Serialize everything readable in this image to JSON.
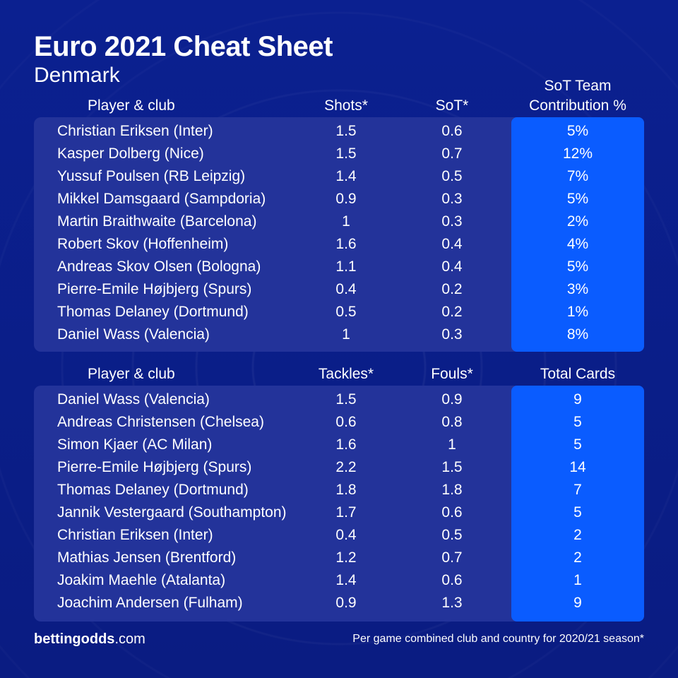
{
  "title": "Euro 2021 Cheat Sheet",
  "subtitle": "Denmark",
  "colors": {
    "background": "#0a1f86",
    "panel": "#23339a",
    "highlight": "#0a5cff",
    "text": "#ffffff"
  },
  "table1": {
    "headers": {
      "player": "Player & club",
      "col1": "Shots*",
      "col2": "SoT*",
      "col3_line1": "SoT Team",
      "col3_line2": "Contribution %"
    },
    "rows": [
      {
        "player": "Christian Eriksen (Inter)",
        "shots": "1.5",
        "sot": "0.6",
        "contribution": "5%"
      },
      {
        "player": "Kasper Dolberg (Nice)",
        "shots": "1.5",
        "sot": "0.7",
        "contribution": "12%"
      },
      {
        "player": "Yussuf Poulsen (RB Leipzig)",
        "shots": "1.4",
        "sot": "0.5",
        "contribution": "7%"
      },
      {
        "player": "Mikkel Damsgaard (Sampdoria)",
        "shots": "0.9",
        "sot": "0.3",
        "contribution": "5%"
      },
      {
        "player": "Martin Braithwaite (Barcelona)",
        "shots": "1",
        "sot": "0.3",
        "contribution": "2%"
      },
      {
        "player": "Robert Skov (Hoffenheim)",
        "shots": "1.6",
        "sot": "0.4",
        "contribution": "4%"
      },
      {
        "player": "Andreas Skov Olsen (Bologna)",
        "shots": "1.1",
        "sot": "0.4",
        "contribution": "5%"
      },
      {
        "player": "Pierre-Emile Højbjerg (Spurs)",
        "shots": "0.4",
        "sot": "0.2",
        "contribution": "3%"
      },
      {
        "player": "Thomas Delaney (Dortmund)",
        "shots": "0.5",
        "sot": "0.2",
        "contribution": "1%"
      },
      {
        "player": "Daniel Wass (Valencia)",
        "shots": "1",
        "sot": "0.3",
        "contribution": "8%"
      }
    ]
  },
  "table2": {
    "headers": {
      "player": "Player & club",
      "col1": "Tackles*",
      "col2": "Fouls*",
      "col3": "Total Cards"
    },
    "rows": [
      {
        "player": "Daniel Wass (Valencia)",
        "tackles": "1.5",
        "fouls": "0.9",
        "cards": "9"
      },
      {
        "player": "Andreas Christensen (Chelsea)",
        "tackles": "0.6",
        "fouls": "0.8",
        "cards": "5"
      },
      {
        "player": "Simon Kjaer (AC Milan)",
        "tackles": "1.6",
        "fouls": "1",
        "cards": "5"
      },
      {
        "player": "Pierre-Emile Højbjerg (Spurs)",
        "tackles": "2.2",
        "fouls": "1.5",
        "cards": "14"
      },
      {
        "player": "Thomas Delaney (Dortmund)",
        "tackles": "1.8",
        "fouls": "1.8",
        "cards": "7"
      },
      {
        "player": "Jannik Vestergaard (Southampton)",
        "tackles": "1.7",
        "fouls": "0.6",
        "cards": "5"
      },
      {
        "player": "Christian Eriksen (Inter)",
        "tackles": "0.4",
        "fouls": "0.5",
        "cards": "2"
      },
      {
        "player": "Mathias Jensen (Brentford)",
        "tackles": "1.2",
        "fouls": "0.7",
        "cards": "2"
      },
      {
        "player": "Joakim Maehle (Atalanta)",
        "tackles": "1.4",
        "fouls": "0.6",
        "cards": "1"
      },
      {
        "player": "Joachim Andersen (Fulham)",
        "tackles": "0.9",
        "fouls": "1.3",
        "cards": "9"
      }
    ]
  },
  "footer": {
    "brand_bold": "bettingodds",
    "brand_light": ".com",
    "note": "Per game combined club and country for 2020/21 season*"
  }
}
